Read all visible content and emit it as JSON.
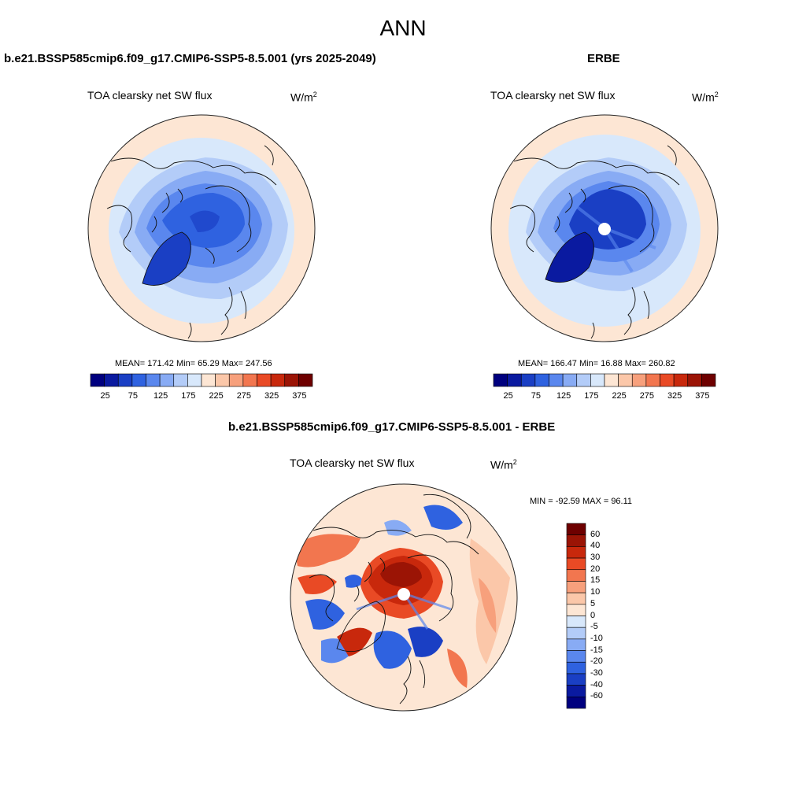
{
  "figure": {
    "title": "ANN"
  },
  "panels": [
    {
      "case_title": "b.e21.BSSP585cmip6.f09_g17.CMIP6-SSP5-8.5.001 (yrs 2025-2049)",
      "variable": "TOA clearsky net SW flux",
      "units_base": "W/m",
      "units_exp": "2",
      "stats": "MEAN= 171.42  Min=  65.29  Max= 247.56",
      "mean": 171.42,
      "min": 65.29,
      "max": 247.56
    },
    {
      "case_title": "ERBE",
      "variable": "TOA clearsky net SW flux",
      "units_base": "W/m",
      "units_exp": "2",
      "stats": "MEAN= 166.47  Min=  16.88  Max= 260.82",
      "mean": 166.47,
      "min": 16.88,
      "max": 260.82
    },
    {
      "case_title": "b.e21.BSSP585cmip6.f09_g17.CMIP6-SSP5-8.5.001 - ERBE",
      "variable": "TOA clearsky net SW flux",
      "units_base": "W/m",
      "units_exp": "2",
      "stats": "MIN = -92.59 MAX =  96.11",
      "min": -92.59,
      "max": 96.11
    }
  ],
  "colorbars": {
    "absolute": {
      "colors": [
        "#00007f",
        "#0a1aa0",
        "#1a3fc4",
        "#2f62e0",
        "#5a87ee",
        "#88abf4",
        "#b3ccf8",
        "#d8e8fb",
        "#fde6d4",
        "#fbc7a9",
        "#f7a07c",
        "#f2764f",
        "#e94a25",
        "#c8280c",
        "#9b1405",
        "#6e0000"
      ],
      "labels": [
        "25",
        "75",
        "125",
        "175",
        "225",
        "275",
        "325",
        "375"
      ]
    },
    "difference": {
      "colors": [
        "#6e0000",
        "#9b1405",
        "#c8280c",
        "#e94a25",
        "#f2764f",
        "#f7a07c",
        "#fbc7a9",
        "#fde6d4",
        "#d8e8fb",
        "#b3ccf8",
        "#88abf4",
        "#5a87ee",
        "#2f62e0",
        "#1a3fc4",
        "#0a1aa0",
        "#00007f"
      ],
      "labels": [
        "60",
        "40",
        "30",
        "20",
        "15",
        "10",
        "5",
        "0",
        "-5",
        "-10",
        "-15",
        "-20",
        "-30",
        "-40",
        "-60"
      ]
    }
  }
}
